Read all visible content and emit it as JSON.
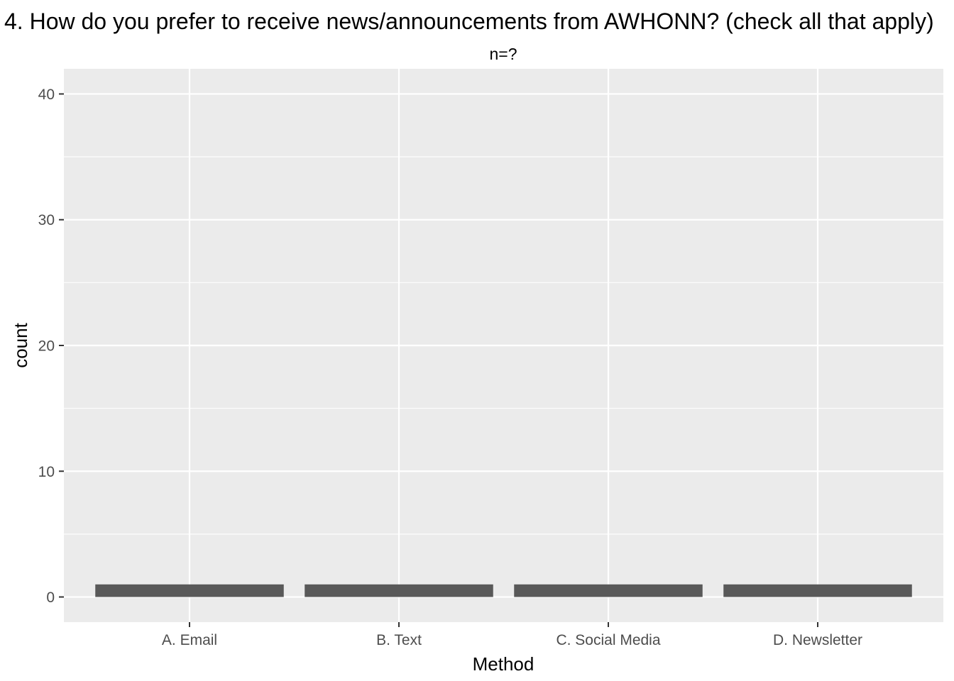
{
  "chart_data": {
    "type": "bar",
    "title": "4. How do you prefer to receive news/announcements from AWHONN? (check all that apply)",
    "subtitle": "n=?",
    "xlabel": "Method",
    "ylabel": "count",
    "categories": [
      "A. Email",
      "B. Text",
      "C. Social Media",
      "D. Newsletter"
    ],
    "values": [
      1,
      1,
      1,
      1
    ],
    "ylim": [
      -2,
      42
    ],
    "yticks": [
      0,
      10,
      20,
      30,
      40
    ],
    "grid": true,
    "legend": "none",
    "colors": {
      "panel_background": "#ebebeb",
      "grid": "#ffffff",
      "bar_fill": "#595959",
      "tick_text": "#4d4d4d",
      "tick_mark": "#333333"
    }
  }
}
